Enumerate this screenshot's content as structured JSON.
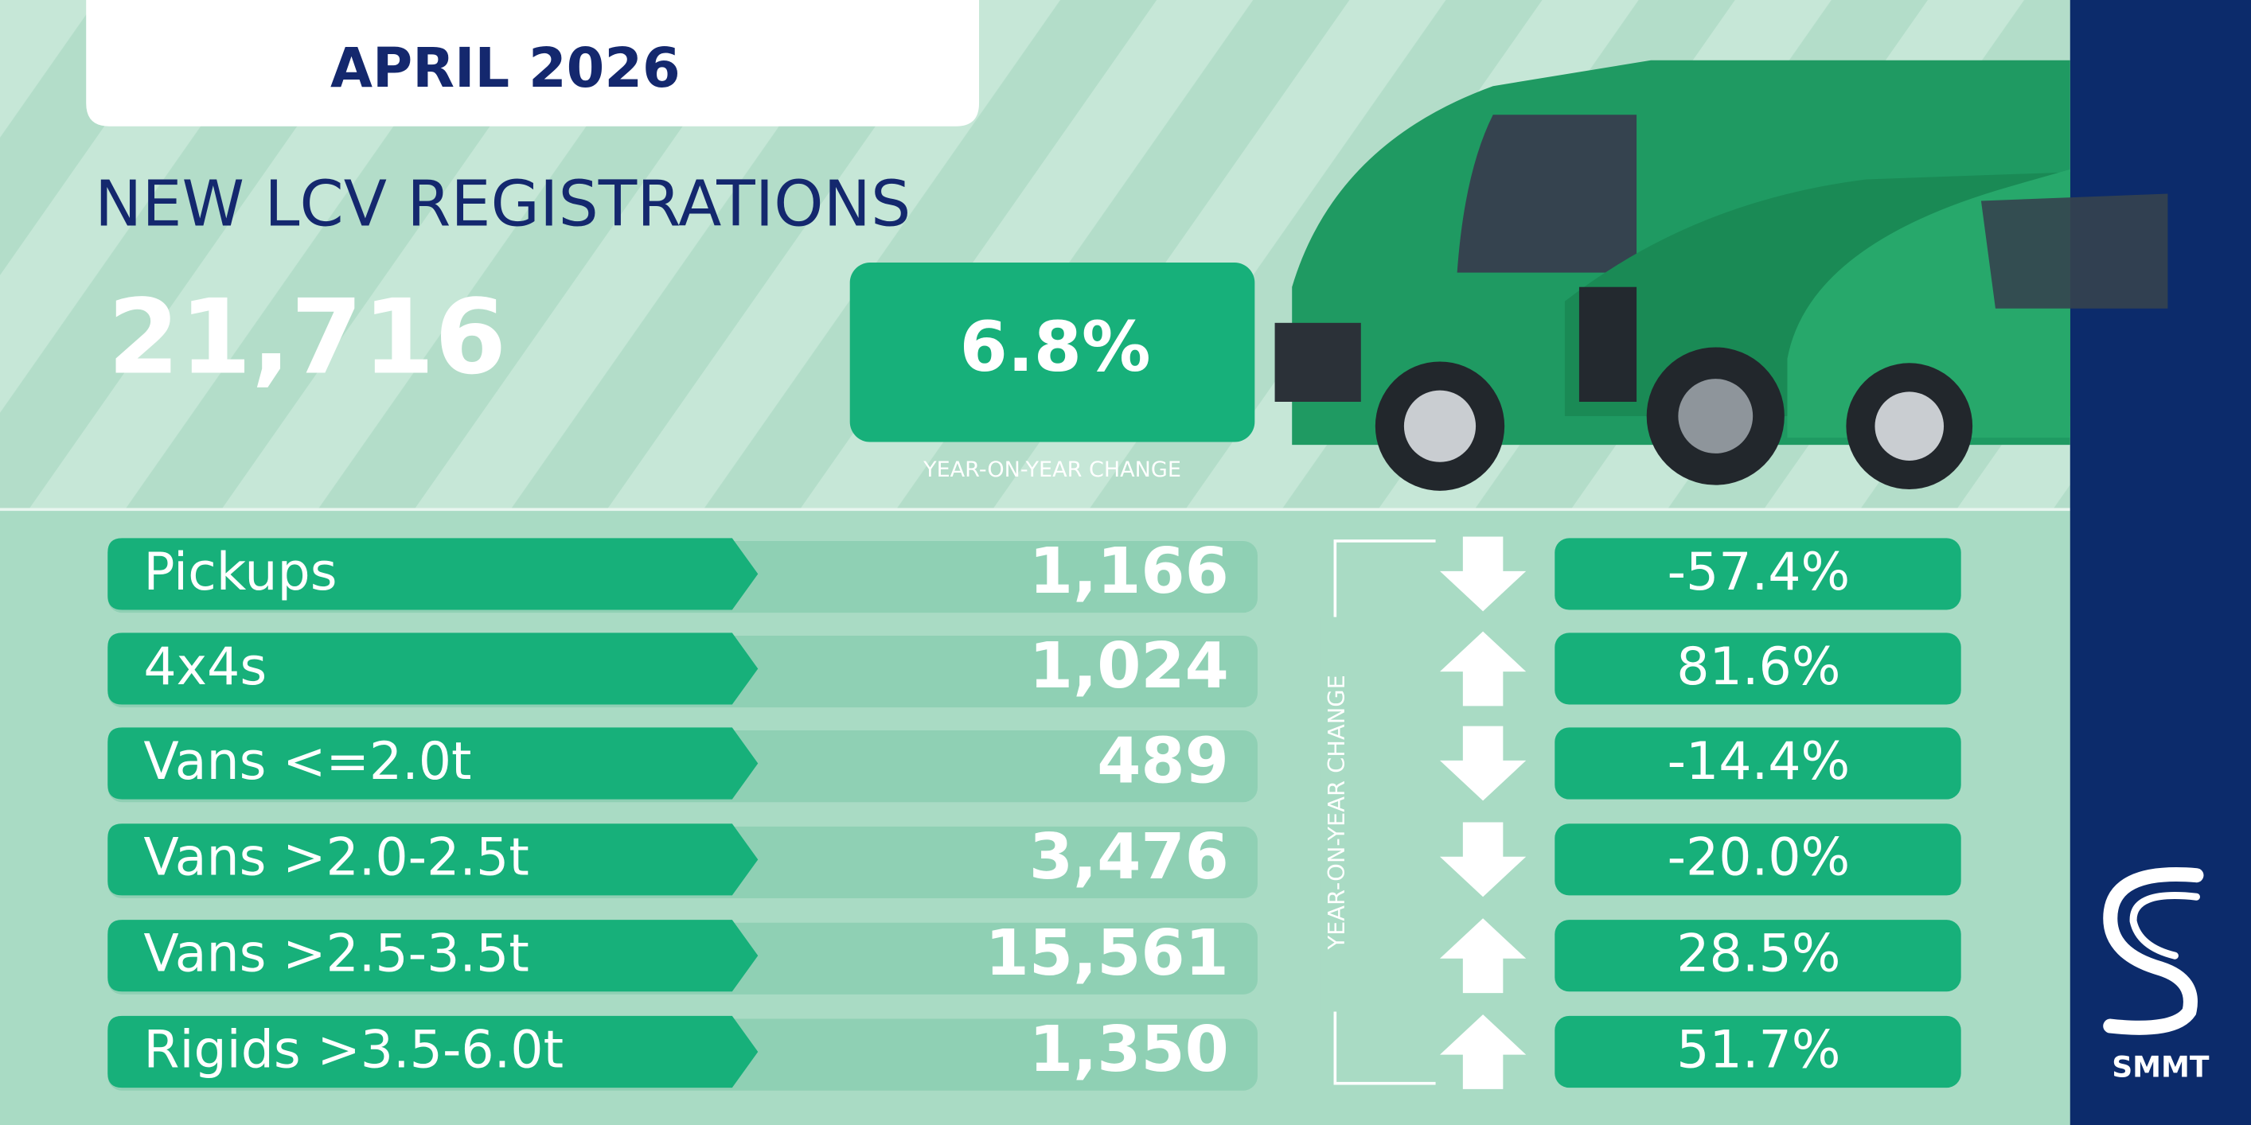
{
  "header": {
    "title": "APRIL 2026"
  },
  "summary": {
    "heading": "NEW LCV REGISTRATIONS",
    "total": "21,716",
    "change": "6.8%",
    "change_label": "YEAR-ON-YEAR CHANGE"
  },
  "table": {
    "side_label": "YEAR-ON-YEAR CHANGE",
    "rows": [
      {
        "label": "Pickups",
        "value": "1,166",
        "change": "-57.4%",
        "direction": "down"
      },
      {
        "label": "4x4s",
        "value": "1,024",
        "change": "81.6%",
        "direction": "up"
      },
      {
        "label": "Vans <=2.0t",
        "value": "489",
        "change": "-14.4%",
        "direction": "down"
      },
      {
        "label": "Vans >2.0-2.5t",
        "value": "3,476",
        "change": "-20.0%",
        "direction": "down"
      },
      {
        "label": "Vans >2.5-3.5t",
        "value": "15,561",
        "change": "28.5%",
        "direction": "up"
      },
      {
        "label": "Rigids >3.5-6.0t",
        "value": "1,350",
        "change": "51.7%",
        "direction": "up"
      }
    ]
  },
  "logo": {
    "text": "SMMT"
  }
}
